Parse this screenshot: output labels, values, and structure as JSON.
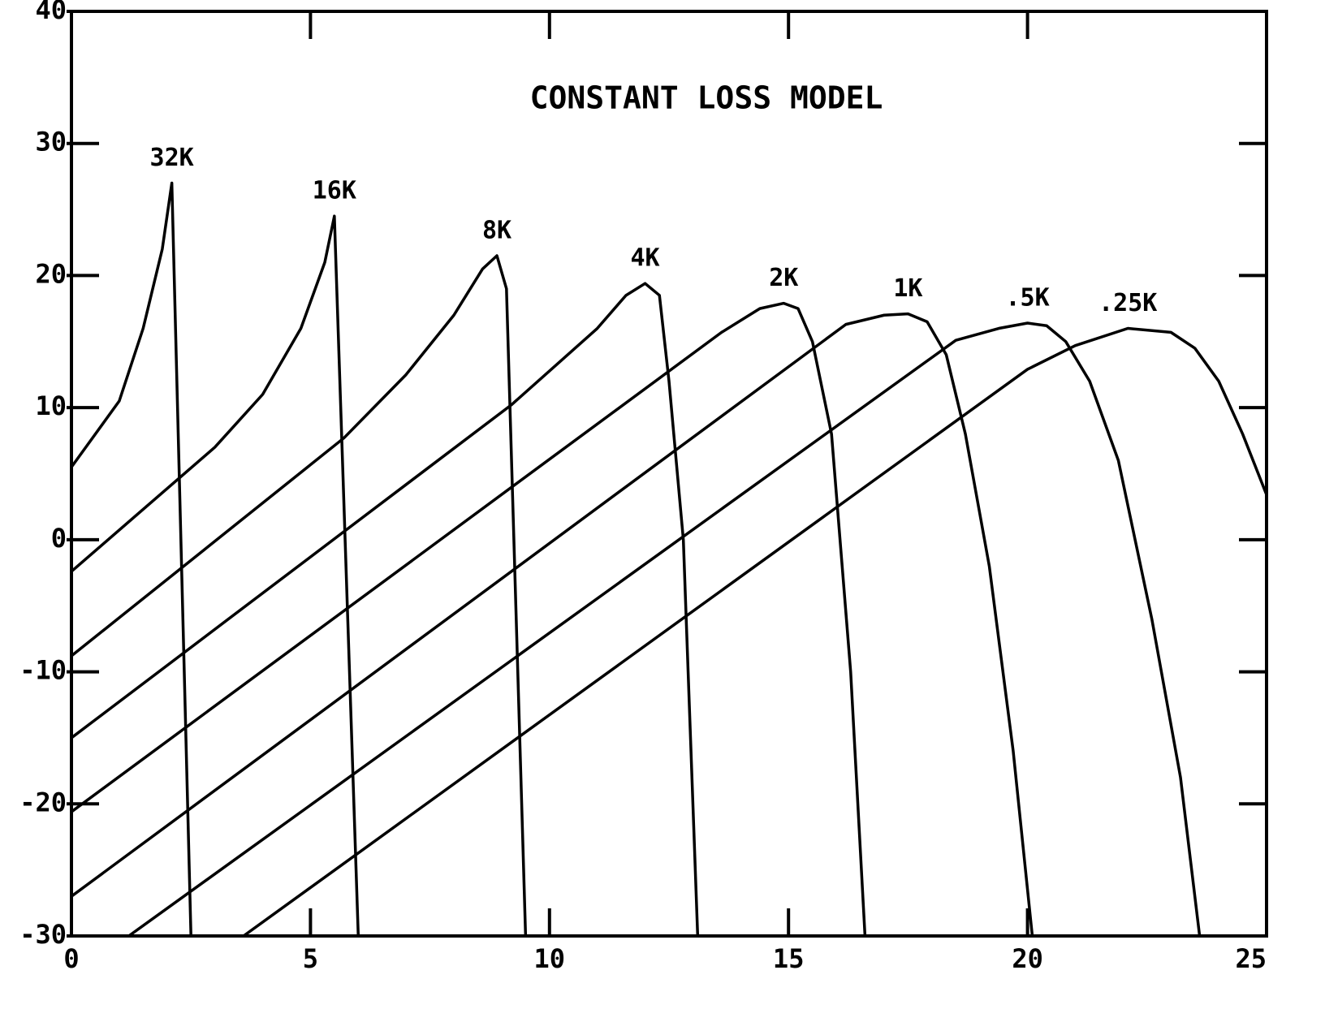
{
  "chart_data": {
    "type": "line",
    "title": "CONSTANT LOSS MODEL",
    "xlim": [
      0,
      25
    ],
    "ylim": [
      -30,
      40
    ],
    "xticks": [
      0,
      5,
      10,
      15,
      20,
      25
    ],
    "yticks": [
      -30,
      -20,
      -10,
      0,
      10,
      20,
      30,
      40
    ],
    "color": "#000000",
    "series": [
      {
        "name": "32K",
        "x": [
          0,
          1,
          1.5,
          1.9,
          2.1,
          2.5
        ],
        "values": [
          5.5,
          10.5,
          16,
          22,
          27,
          -30
        ]
      },
      {
        "name": "16K",
        "x": [
          0,
          3,
          4,
          4.8,
          5.3,
          5.5,
          6.0
        ],
        "values": [
          -2.4,
          7,
          11,
          16,
          21,
          24.5,
          -30
        ]
      },
      {
        "name": "8K",
        "x": [
          0,
          5.7,
          7,
          8,
          8.6,
          8.9,
          9.1,
          9.5
        ],
        "values": [
          -8.8,
          7.7,
          12.5,
          17,
          20.5,
          21.5,
          19,
          -30
        ]
      },
      {
        "name": "4K",
        "x": [
          0,
          9.2,
          11,
          11.6,
          12,
          12.3,
          12.5,
          12.8,
          13.1
        ],
        "values": [
          -15,
          10.2,
          16,
          18.5,
          19.4,
          18.5,
          12,
          0,
          -30
        ]
      },
      {
        "name": "2K",
        "x": [
          0,
          13.6,
          14.4,
          14.9,
          15.2,
          15.5,
          15.9,
          16.3,
          16.6
        ],
        "values": [
          -20.6,
          15.7,
          17.5,
          17.9,
          17.5,
          15,
          8,
          -10,
          -30
        ]
      },
      {
        "name": "1K",
        "x": [
          0,
          16.2,
          17,
          17.5,
          17.9,
          18.3,
          18.7,
          19.2,
          19.7,
          20.1
        ],
        "values": [
          -27,
          16.3,
          17,
          17.1,
          16.5,
          14,
          8,
          -2,
          -16,
          -30
        ]
      },
      {
        "name": ".5K",
        "x": [
          1.2,
          18.5,
          19.4,
          20,
          20.4,
          20.8,
          21.3,
          21.9,
          22.6,
          23.2,
          23.6
        ],
        "values": [
          -30,
          15.1,
          16,
          16.4,
          16.2,
          15,
          12,
          6,
          -6,
          -18,
          -30
        ]
      },
      {
        "name": ".25K",
        "x": [
          3.6,
          20,
          21,
          22.1,
          23,
          23.5,
          24,
          24.5,
          25
        ],
        "values": [
          -30,
          12.9,
          14.7,
          16,
          15.7,
          14.5,
          12,
          8,
          3.4
        ]
      }
    ]
  }
}
